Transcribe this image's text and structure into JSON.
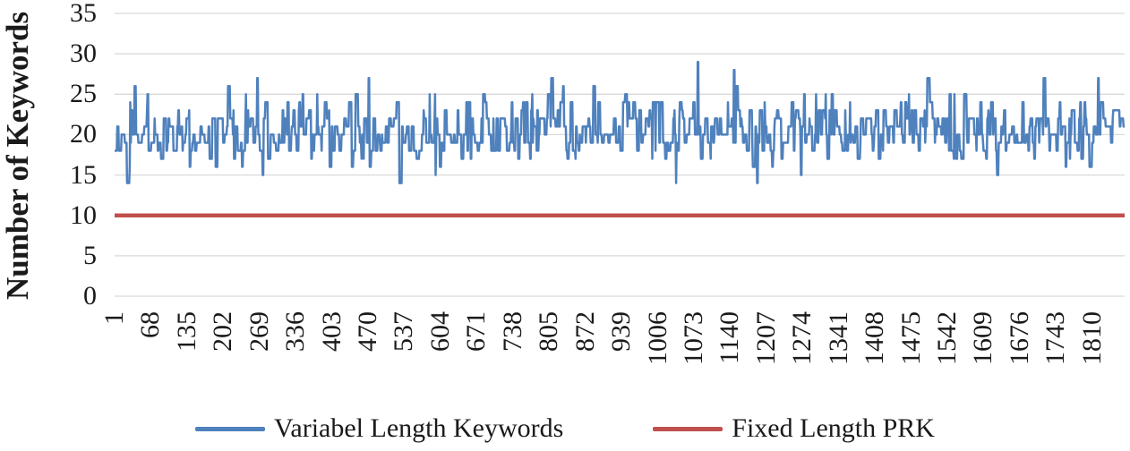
{
  "chart_data": {
    "type": "line",
    "title": "",
    "ylabel": "Number of Keywords",
    "xlabel": "",
    "ylim": [
      0,
      35
    ],
    "y_ticks": [
      0,
      5,
      10,
      15,
      20,
      25,
      30,
      35
    ],
    "x_ticks": [
      1,
      68,
      135,
      202,
      269,
      336,
      403,
      470,
      537,
      604,
      671,
      738,
      805,
      872,
      939,
      1006,
      1073,
      1140,
      1207,
      1274,
      1341,
      1408,
      1475,
      1542,
      1609,
      1676,
      1743,
      1810
    ],
    "x_tick_interval": 67,
    "n_points": 1870,
    "grid": "horizontal",
    "grid_color": "#D9D9D9",
    "text_color": "#1A1A1A",
    "series": [
      {
        "name": "Variabel Length Keywords",
        "kind": "noisy-line",
        "color": "#4F81BD",
        "value_range": [
          14,
          29
        ],
        "typical_band": [
          15,
          27
        ],
        "mean": 20.4,
        "generator": {
          "seed": 42,
          "mean": 20.4,
          "sd": 2.3,
          "min": 14,
          "max": 29,
          "hold_max": 5,
          "highlights": [
            {
              "i": 264,
              "v": 27
            },
            {
              "i": 470,
              "v": 27
            },
            {
              "i": 1079,
              "v": 29
            },
            {
              "i": 1146,
              "v": 28
            },
            {
              "i": 1189,
              "v": 14
            },
            {
              "i": 1820,
              "v": 27
            }
          ]
        }
      },
      {
        "name": "Fixed Length PRK",
        "kind": "constant-line",
        "color": "#C0504D",
        "value": 10
      }
    ],
    "legend": {
      "position": "bottom",
      "entries": [
        "Variabel Length Keywords",
        "Fixed Length PRK"
      ]
    }
  }
}
